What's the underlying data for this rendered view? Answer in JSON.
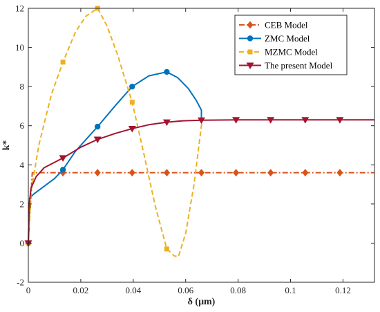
{
  "chart_data": {
    "type": "line",
    "xlabel": "δ (μm)",
    "ylabel": "k*",
    "xlim": [
      0,
      0.132
    ],
    "ylim": [
      -2,
      12
    ],
    "xticks": [
      0,
      0.02,
      0.04,
      0.06,
      0.08,
      0.1,
      0.12
    ],
    "xtick_labels": [
      "0",
      "0.02",
      "0.04",
      "0.06",
      "0.08",
      "0.1",
      "0.12"
    ],
    "yticks": [
      -2,
      0,
      2,
      4,
      6,
      8,
      10,
      12
    ],
    "ytick_labels": [
      "-2",
      "0",
      "2",
      "4",
      "6",
      "8",
      "10",
      "12"
    ],
    "grid": false,
    "legend": "top-right",
    "series": [
      {
        "name": "CEB Model",
        "color": "#D95319",
        "dash": "dash-dot",
        "marker": "diamond",
        "line": {
          "x": [
            0,
            0.0015,
            0.132
          ],
          "y": [
            0,
            3.6,
            3.6
          ]
        },
        "markers": {
          "x": [
            0,
            0.0132,
            0.0264,
            0.0396,
            0.0528,
            0.066,
            0.0792,
            0.0924,
            0.1056,
            0.1188
          ],
          "y": [
            0,
            3.6,
            3.6,
            3.6,
            3.6,
            3.6,
            3.6,
            3.6,
            3.6,
            3.6
          ]
        }
      },
      {
        "name": "ZMC Model",
        "color": "#0072BD",
        "dash": "solid",
        "marker": "circle",
        "line": {
          "x": [
            0,
            0.0005,
            0.002,
            0.005,
            0.01,
            0.0132,
            0.018,
            0.0264,
            0.033,
            0.0396,
            0.046,
            0.0528,
            0.057,
            0.061,
            0.064,
            0.066,
            0.066
          ],
          "y": [
            0,
            2.3,
            2.5,
            2.8,
            3.3,
            3.75,
            4.7,
            5.95,
            7.0,
            8.0,
            8.55,
            8.75,
            8.45,
            7.9,
            7.3,
            6.8,
            6.3
          ]
        },
        "markers": {
          "x": [
            0,
            0.0132,
            0.0264,
            0.0396,
            0.0528
          ],
          "y": [
            0,
            3.75,
            5.95,
            8.0,
            8.75
          ]
        }
      },
      {
        "name": "MZMC Model",
        "color": "#EDB120",
        "dash": "dashed",
        "marker": "square",
        "line": {
          "x": [
            0,
            0.001,
            0.004,
            0.0088,
            0.0132,
            0.018,
            0.022,
            0.0264,
            0.03,
            0.0341,
            0.0396,
            0.044,
            0.0484,
            0.0528,
            0.0556,
            0.0572,
            0.06,
            0.0632,
            0.066,
            0.0665
          ],
          "y": [
            0,
            2.6,
            5.0,
            7.6,
            9.25,
            10.8,
            11.6,
            12.0,
            11.1,
            9.6,
            7.2,
            4.6,
            1.9,
            -0.3,
            -0.65,
            -0.7,
            0.5,
            3.0,
            6.0,
            6.3
          ]
        },
        "markers": {
          "x": [
            0,
            0.0132,
            0.0264,
            0.0396,
            0.0528
          ],
          "y": [
            0,
            9.25,
            12.0,
            7.2,
            -0.3
          ]
        }
      },
      {
        "name": "The present Model",
        "color": "#A2142F",
        "dash": "solid",
        "marker": "triangle-down",
        "line": {
          "x": [
            0,
            0.0003,
            0.001,
            0.003,
            0.006,
            0.0132,
            0.02,
            0.0264,
            0.033,
            0.0396,
            0.046,
            0.0528,
            0.059,
            0.066,
            0.08,
            0.1,
            0.132
          ],
          "y": [
            0,
            1.9,
            2.8,
            3.4,
            3.85,
            4.35,
            4.9,
            5.3,
            5.6,
            5.85,
            6.05,
            6.18,
            6.25,
            6.28,
            6.3,
            6.3,
            6.3
          ]
        },
        "markers": {
          "x": [
            0,
            0.0132,
            0.0264,
            0.0396,
            0.0528,
            0.066,
            0.0792,
            0.0924,
            0.1056,
            0.1188
          ],
          "y": [
            0,
            4.35,
            5.3,
            5.85,
            6.18,
            6.28,
            6.3,
            6.3,
            6.3,
            6.3
          ]
        }
      }
    ]
  }
}
